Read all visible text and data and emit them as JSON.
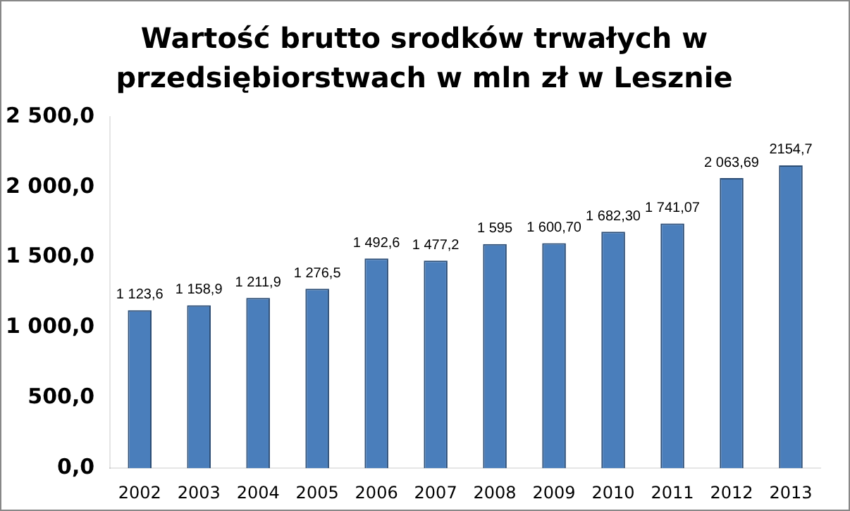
{
  "chart_data": {
    "type": "bar",
    "title": "Wartość brutto srodków trwałych w przedsiębiorstwach w mln zł w Lesznie",
    "categories": [
      "2002",
      "2003",
      "2004",
      "2005",
      "2006",
      "2007",
      "2008",
      "2009",
      "2010",
      "2011",
      "2012",
      "2013"
    ],
    "values": [
      1123.6,
      1158.9,
      1211.9,
      1276.5,
      1492.6,
      1477.2,
      1595,
      1600.7,
      1682.3,
      1741.07,
      2063.69,
      2154.7
    ],
    "value_labels": [
      "1 123,6",
      "1 158,9",
      "1 211,9",
      "1 276,5",
      "1 492,6",
      "1 477,2",
      "1 595",
      "1 600,70",
      "1 682,30",
      "1 741,07",
      "2 063,69",
      "2154,7"
    ],
    "color": "#4a7ebb",
    "ylim": [
      0,
      2500
    ],
    "yticks": [
      {
        "value": 0,
        "label": "0,0"
      },
      {
        "value": 500,
        "label": "500,0"
      },
      {
        "value": 1000,
        "label": "1 000,0"
      },
      {
        "value": 1500,
        "label": "1 500,0"
      },
      {
        "value": 2000,
        "label": "2 000,0"
      },
      {
        "value": 2500,
        "label": "2 500,0"
      }
    ],
    "grid": false,
    "legend": false
  }
}
